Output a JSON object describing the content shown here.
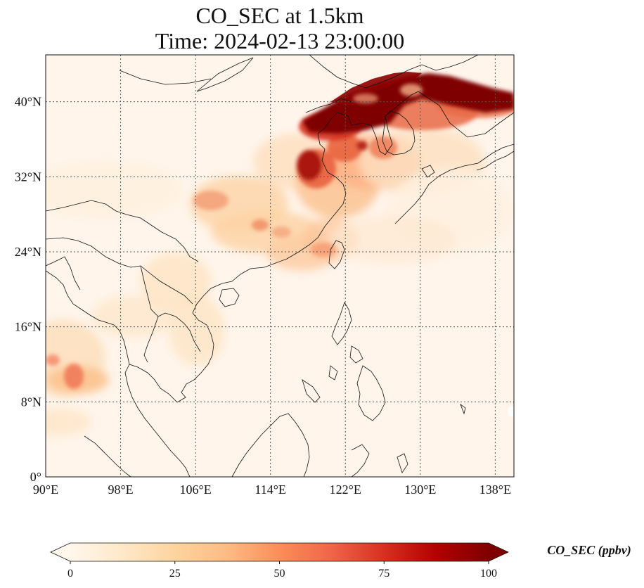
{
  "title": {
    "line1": "CO_SEC at 1.5km",
    "line2": "Time: 2024-02-13 23:00:00"
  },
  "map": {
    "lon_range": [
      90,
      140
    ],
    "lat_range": [
      0,
      45
    ],
    "lon_ticks": [
      {
        "value": 90,
        "label": "90°E"
      },
      {
        "value": 98,
        "label": "98°E"
      },
      {
        "value": 106,
        "label": "106°E"
      },
      {
        "value": 114,
        "label": "114°E"
      },
      {
        "value": 122,
        "label": "122°E"
      },
      {
        "value": 130,
        "label": "130°E"
      },
      {
        "value": 138,
        "label": "138°E"
      }
    ],
    "lat_ticks": [
      {
        "value": 0,
        "label": "0°"
      },
      {
        "value": 8,
        "label": "8°N"
      },
      {
        "value": 16,
        "label": "16°N"
      },
      {
        "value": 24,
        "label": "24°N"
      },
      {
        "value": 32,
        "label": "32°N"
      },
      {
        "value": 40,
        "label": "40°N"
      }
    ],
    "gridlines": true,
    "background_color": "#fff5eb"
  },
  "colorbar": {
    "label": "CO_SEC (ppbv)",
    "range": [
      0,
      100
    ],
    "extend": "both",
    "colormap": "OrRd",
    "stops": [
      "#fff7ec",
      "#fee8c8",
      "#fdd49e",
      "#fdbb84",
      "#fc8d59",
      "#ef6548",
      "#d7301f",
      "#b30000",
      "#7f0000"
    ],
    "ticks": [
      {
        "value": 0,
        "label": "0"
      },
      {
        "value": 25,
        "label": "25"
      },
      {
        "value": 50,
        "label": "50"
      },
      {
        "value": 75,
        "label": "75"
      },
      {
        "value": 100,
        "label": "100"
      }
    ]
  }
}
